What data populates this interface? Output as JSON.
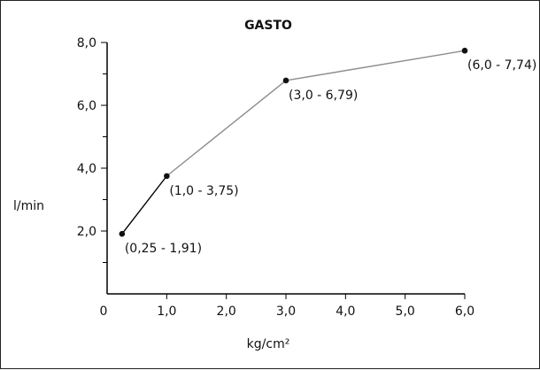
{
  "chart_data": {
    "type": "line",
    "title": "GASTO",
    "xlabel": "kg/cm²",
    "ylabel": "l/min",
    "categories": [
      "0",
      "1,0",
      "2,0",
      "3,0",
      "4,0",
      "5,0",
      "6,0"
    ],
    "x_ticks": [
      0,
      1,
      2,
      3,
      4,
      5,
      6
    ],
    "y_ticks": [
      {
        "value": 2,
        "label": "2,0"
      },
      {
        "value": 4,
        "label": "4,0"
      },
      {
        "value": 6,
        "label": "6,0"
      },
      {
        "value": 8,
        "label": "8,0"
      }
    ],
    "xlim": [
      0,
      6
    ],
    "ylim": [
      0,
      8
    ],
    "grid": false,
    "series": [
      {
        "points": [
          {
            "x": 0.25,
            "y": 1.91,
            "label": "(0,25 - 1,91)"
          },
          {
            "x": 1.0,
            "y": 3.75,
            "label": "(1,0 - 3,75)"
          },
          {
            "x": 3.0,
            "y": 6.79,
            "label": "(3,0 - 6,79)"
          },
          {
            "x": 6.0,
            "y": 7.74,
            "label": "(6,0 - 7,74)"
          }
        ]
      }
    ],
    "colors": {
      "segment_first": "#000000",
      "segment_rest": "#8c8c8c",
      "marker": "#111111",
      "axis": "#000000"
    }
  }
}
